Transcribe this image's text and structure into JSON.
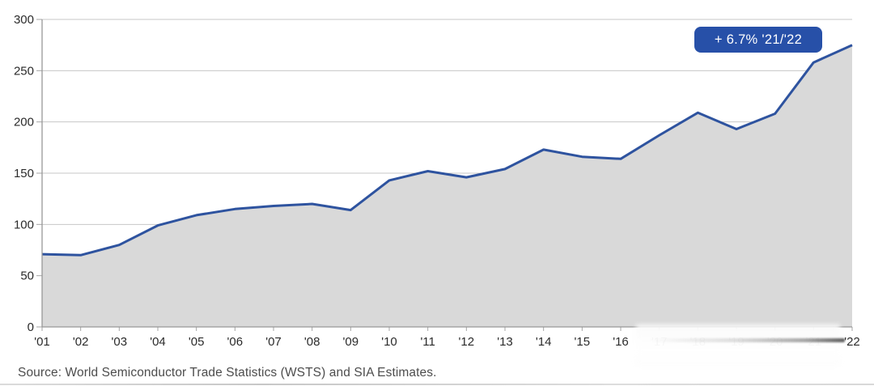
{
  "chart_data": {
    "type": "area",
    "title": "",
    "xlabel": "",
    "ylabel": "",
    "categories": [
      "'01",
      "'02",
      "'03",
      "'04",
      "'05",
      "'06",
      "'07",
      "'08",
      "'09",
      "'10",
      "'11",
      "'12",
      "'13",
      "'14",
      "'15",
      "'16",
      "'17",
      "'18",
      "'19",
      "'20",
      "'21",
      "'22"
    ],
    "values": [
      71,
      70,
      80,
      99,
      109,
      115,
      118,
      120,
      114,
      143,
      152,
      146,
      154,
      173,
      166,
      164,
      187,
      209,
      193,
      208,
      258,
      275
    ],
    "ylim": [
      0,
      300
    ],
    "yticks": [
      0,
      50,
      100,
      150,
      200,
      250,
      300
    ],
    "grid": "horizontal",
    "legend": "none",
    "annotation": {
      "text": "+ 6.7% '21/'22",
      "position": "top-right"
    },
    "obscured_x_labels": [
      "'17",
      "'18",
      "'19",
      "'20",
      "'21"
    ],
    "colors": {
      "line": "#2e539f",
      "fill": "#d9d9d9",
      "badge": "#2750a8",
      "grid": "#c7c7c7",
      "axis": "#979797",
      "tick": "#a5a5a5",
      "tick_label": "#2b2b2b"
    }
  },
  "badge": {
    "label": "+ 6.7% '21/'22"
  },
  "source": {
    "text": "Source: World Semiconductor Trade Statistics (WSTS) and SIA Estimates."
  }
}
